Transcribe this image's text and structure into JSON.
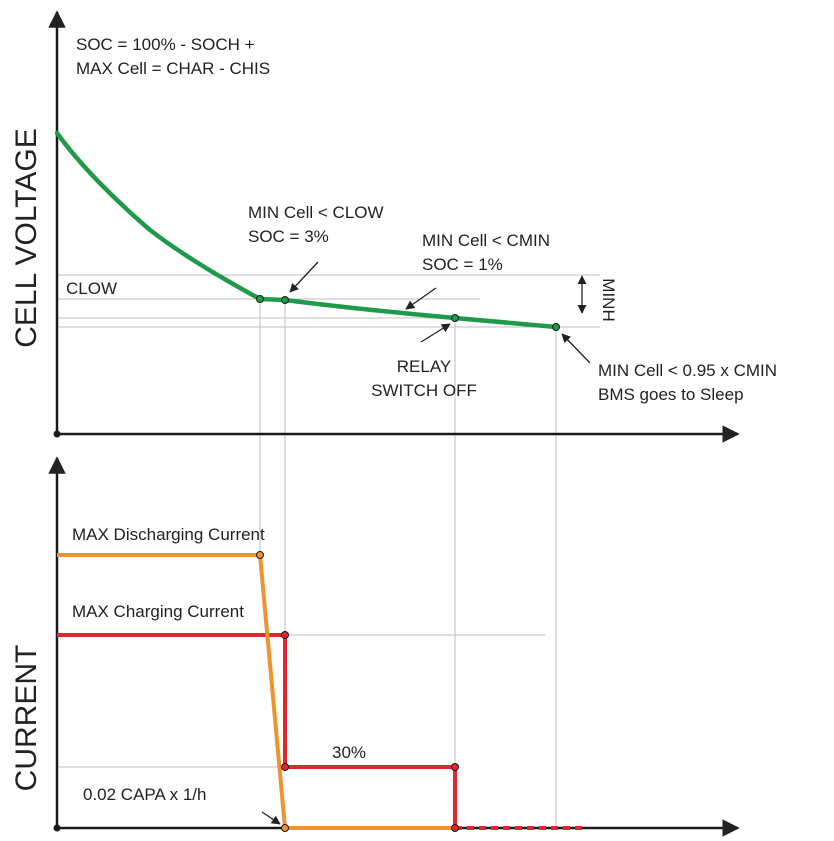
{
  "upper_panel": {
    "axis_title": "CELL VOLTAGE",
    "formula": [
      "SOC = 100% - SOCH +",
      "MAX Cell = CHAR - CHIS"
    ],
    "clow_label": "CLOW",
    "minh_label": "MINH",
    "annotations": {
      "clow_event": [
        "MIN Cell < CLOW",
        "SOC = 3%"
      ],
      "cmin_event": [
        "MIN Cell < CMIN",
        "SOC = 1%"
      ],
      "relay_event": [
        "RELAY",
        "SWITCH OFF"
      ],
      "sleep_event": [
        "MIN Cell < 0.95 x CMIN",
        "BMS goes to Sleep"
      ]
    }
  },
  "lower_panel": {
    "axis_title": "CURRENT",
    "max_discharge_label": "MAX Discharging Current",
    "max_charge_label": "MAX Charging Current",
    "percent_label": "30%",
    "min_current_label": "0.02 CAPA x 1/h"
  },
  "colors": {
    "voltage_curve": "#1f9a4a",
    "discharging": "#f0922e",
    "charging": "#e0262f",
    "axis": "#1a1a1a",
    "guide": "#bbbbbb"
  }
}
